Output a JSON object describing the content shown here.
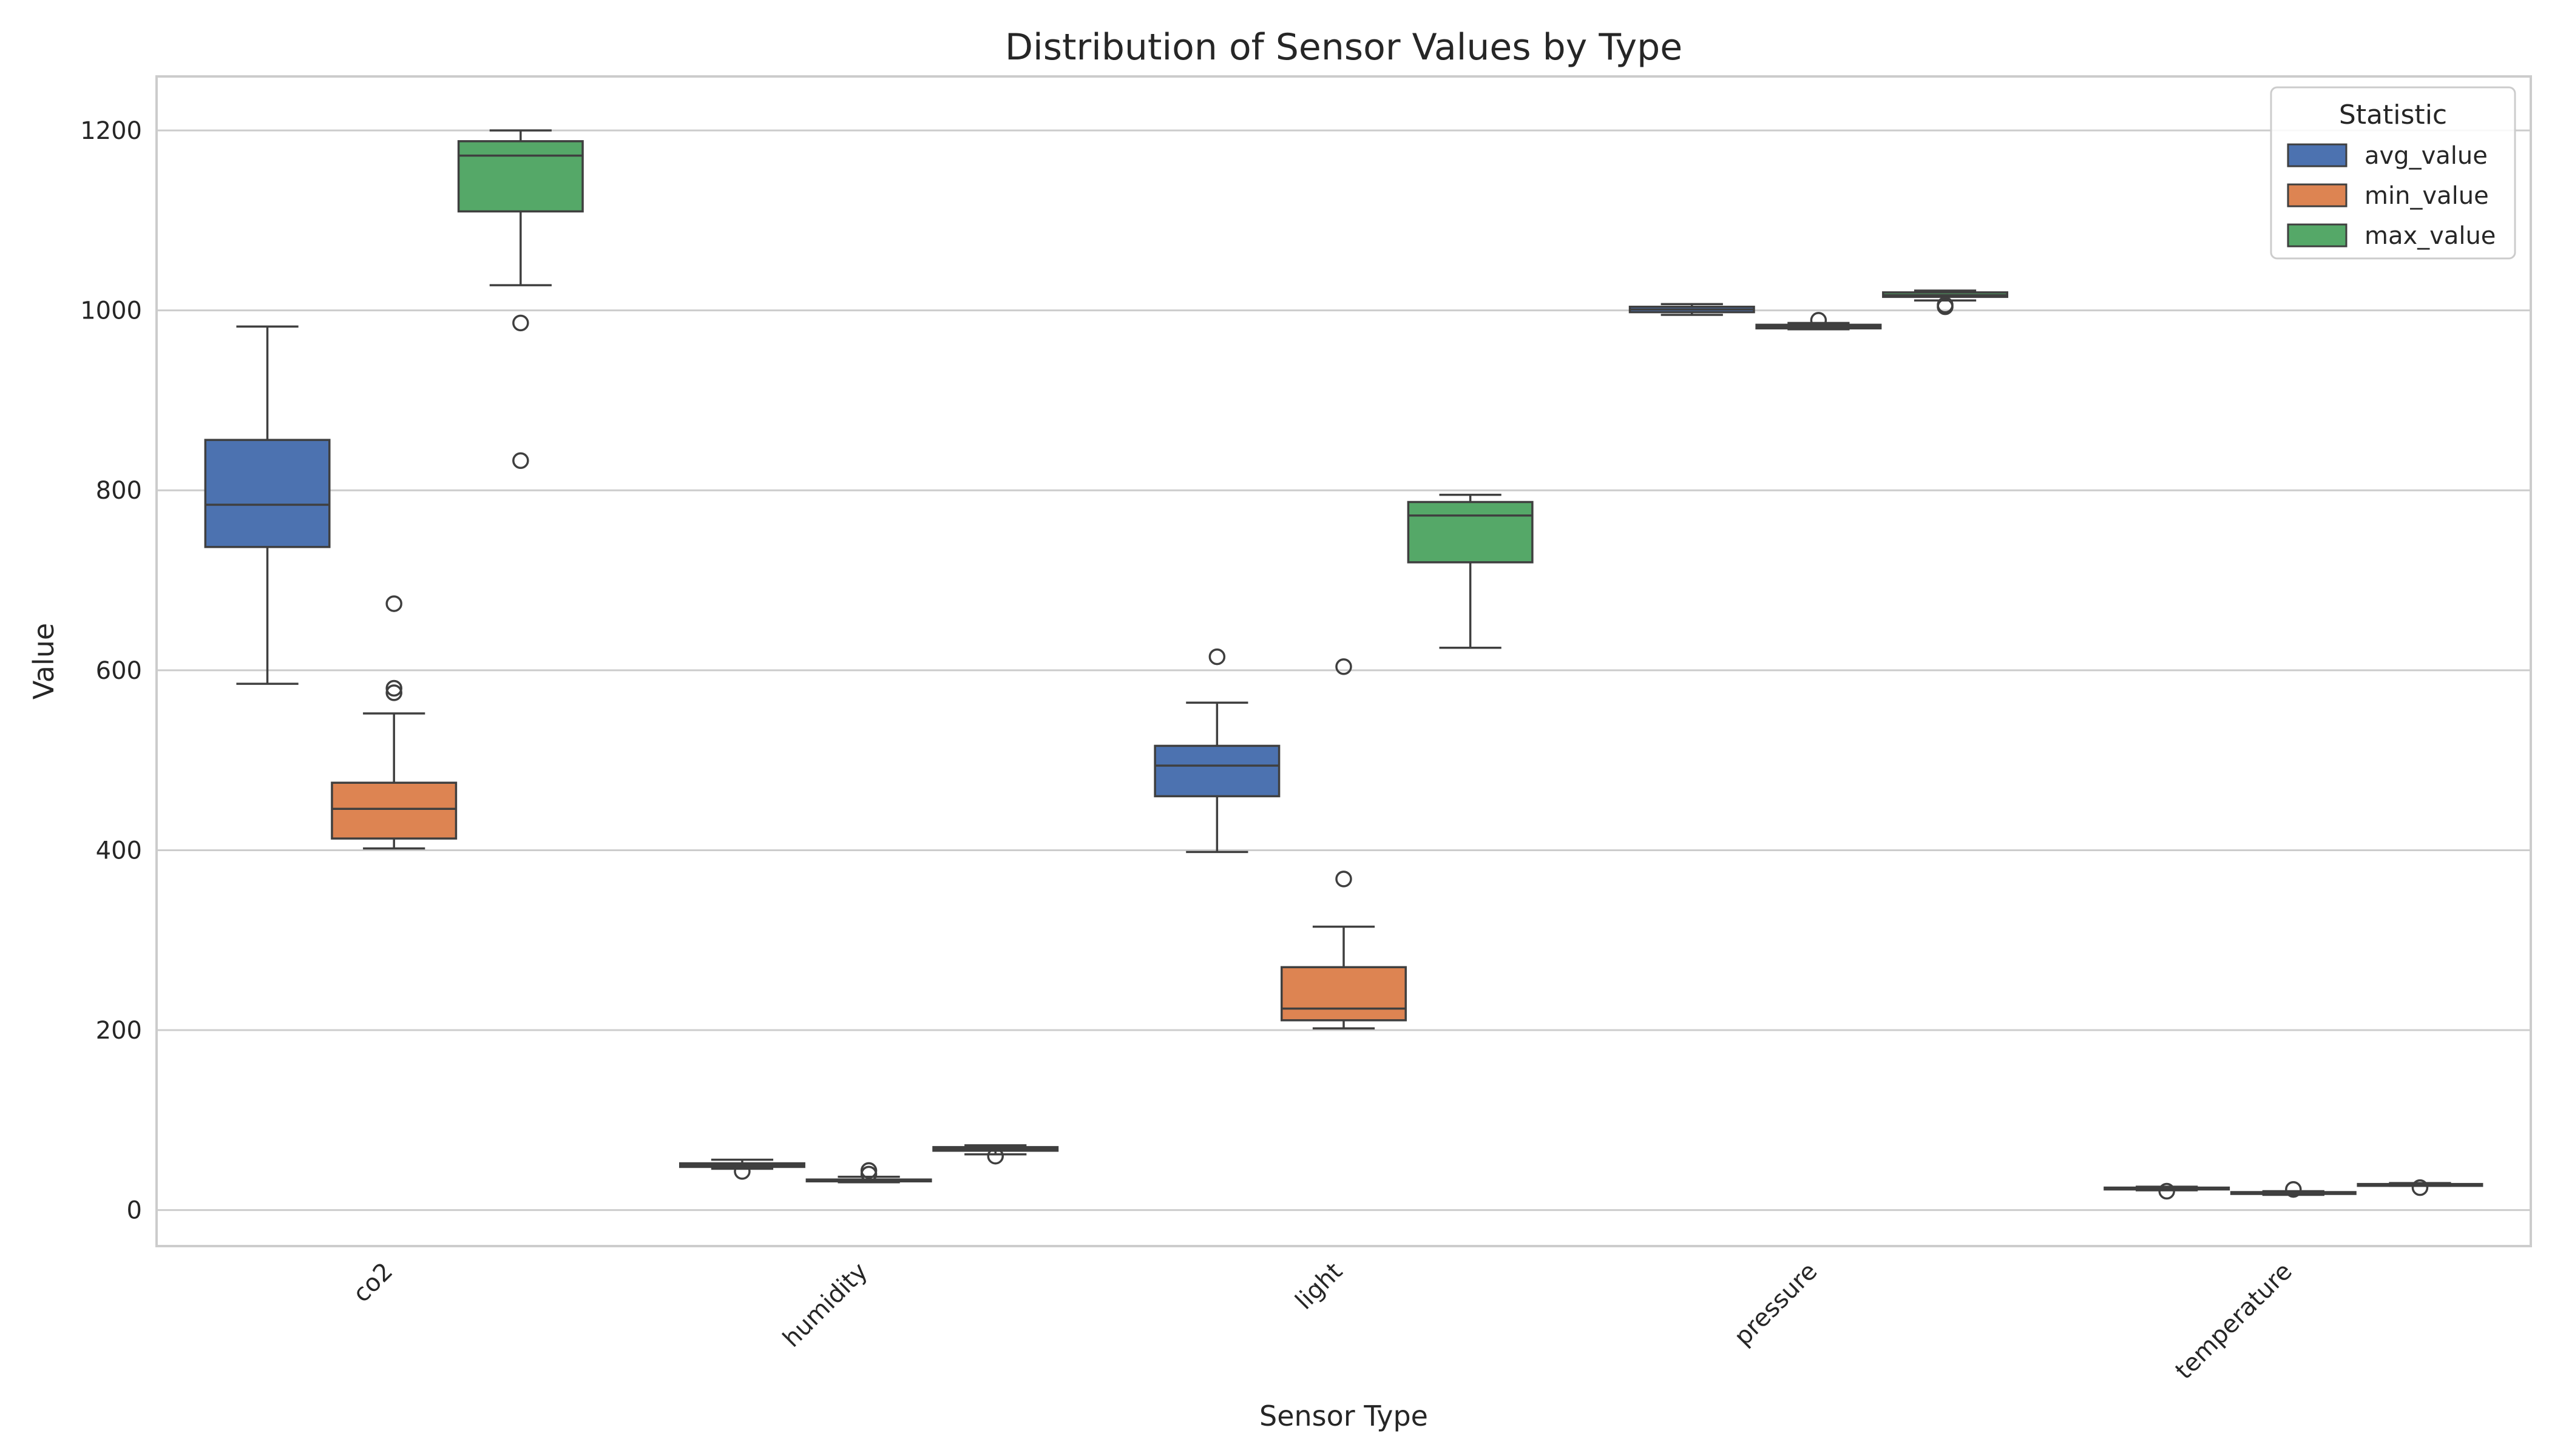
{
  "chart_data": {
    "type": "box",
    "title": "Distribution of Sensor Values by Type",
    "xlabel": "Sensor Type",
    "ylabel": "Value",
    "ylim": [
      -40,
      1260
    ],
    "yticks": [
      0,
      200,
      400,
      600,
      800,
      1000,
      1200
    ],
    "grid": "horizontal",
    "legend_placement": "top-right",
    "legend_title": "Statistic",
    "categories": [
      "co2",
      "humidity",
      "light",
      "pressure",
      "temperature"
    ],
    "series": [
      {
        "name": "avg_value",
        "color": "#4c72b0",
        "boxes": [
          {
            "whislo": 585,
            "q1": 737,
            "med": 784,
            "q3": 856,
            "whishi": 982,
            "fliers": []
          },
          {
            "whislo": 46,
            "q1": 48,
            "med": 50,
            "q3": 52,
            "whishi": 56,
            "fliers": [
              43
            ]
          },
          {
            "whislo": 398,
            "q1": 460,
            "med": 494,
            "q3": 516,
            "whishi": 564,
            "fliers": [
              615
            ]
          },
          {
            "whislo": 995,
            "q1": 998,
            "med": 1001,
            "q3": 1004,
            "whishi": 1007,
            "fliers": []
          },
          {
            "whislo": 22,
            "q1": 23,
            "med": 24,
            "q3": 25,
            "whishi": 26,
            "fliers": [
              21
            ]
          }
        ]
      },
      {
        "name": "min_value",
        "color": "#dd8452",
        "boxes": [
          {
            "whislo": 402,
            "q1": 413,
            "med": 446,
            "q3": 475,
            "whishi": 552,
            "fliers": [
              575,
              580,
              674
            ]
          },
          {
            "whislo": 31,
            "q1": 32,
            "med": 33,
            "q3": 34,
            "whishi": 37,
            "fliers": [
              40,
              44
            ]
          },
          {
            "whislo": 202,
            "q1": 211,
            "med": 224,
            "q3": 270,
            "whishi": 315,
            "fliers": [
              368,
              604
            ]
          },
          {
            "whislo": 979,
            "q1": 980,
            "med": 982,
            "q3": 984,
            "whishi": 986,
            "fliers": [
              989
            ]
          },
          {
            "whislo": 17,
            "q1": 18,
            "med": 19,
            "q3": 20,
            "whishi": 21,
            "fliers": [
              23
            ]
          }
        ]
      },
      {
        "name": "max_value",
        "color": "#55a868",
        "boxes": [
          {
            "whislo": 1028,
            "q1": 1110,
            "med": 1172,
            "q3": 1188,
            "whishi": 1200,
            "fliers": [
              833,
              986
            ]
          },
          {
            "whislo": 62,
            "q1": 66,
            "med": 68,
            "q3": 70,
            "whishi": 72,
            "fliers": [
              60
            ]
          },
          {
            "whislo": 625,
            "q1": 720,
            "med": 772,
            "q3": 787,
            "whishi": 795,
            "fliers": []
          },
          {
            "whislo": 1011,
            "q1": 1015,
            "med": 1017,
            "q3": 1020,
            "whishi": 1022,
            "fliers": [
              1004,
              1006
            ]
          },
          {
            "whislo": 27,
            "q1": 28,
            "med": 28,
            "q3": 29,
            "whishi": 30,
            "fliers": [
              25
            ]
          }
        ]
      }
    ]
  }
}
